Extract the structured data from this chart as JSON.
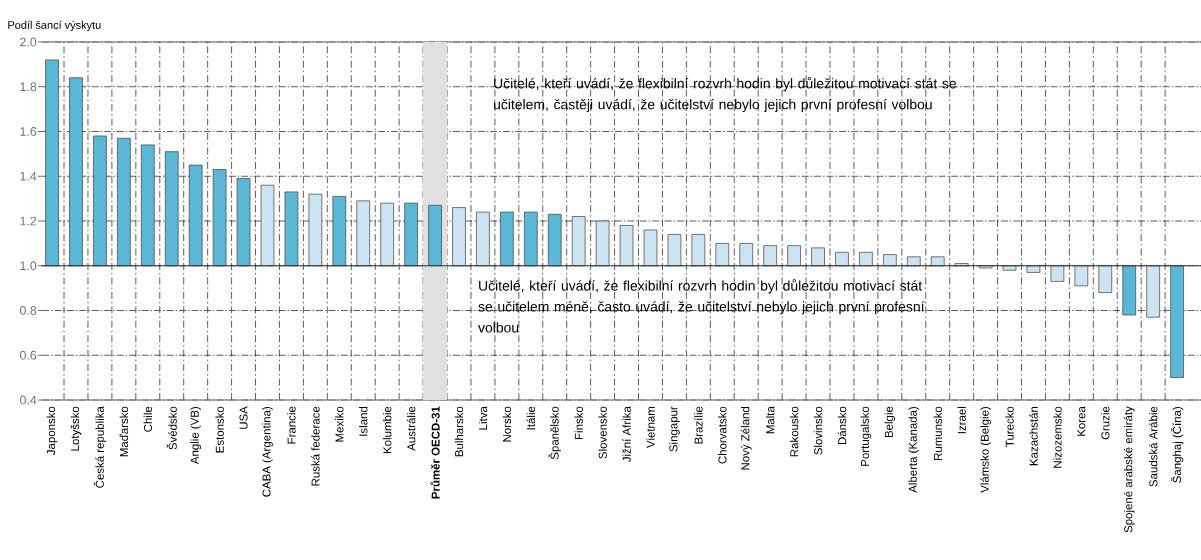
{
  "chart_data": {
    "type": "bar",
    "ylabel": "Podíl šancí výskytu",
    "categories": [
      "Japonsko",
      "Lotyšsko",
      "Česká republika",
      "Maďarsko",
      "Chile",
      "Švédsko",
      "Anglie (VB)",
      "Estonsko",
      "USA",
      "CABA (Argentina)",
      "Francie",
      "Ruská federace",
      "Mexiko",
      "Island",
      "Kolumbie",
      "Austrálie",
      "Průměr OECD-31",
      "Bulharsko",
      "Litva",
      "Norsko",
      "Itálie",
      "Španělsko",
      "Finsko",
      "Slovensko",
      "Jižní Afrika",
      "Vietnam",
      "Singapur",
      "Brazílie",
      "Chorvatsko",
      "Nový Zéland",
      "Malta",
      "Rakousko",
      "Slovinsko",
      "Dánsko",
      "Portugalsko",
      "Belgie",
      "Alberta (Kanada)",
      "Rumunsko",
      "Izrael",
      "Vlámsko (Belgie)",
      "Turecko",
      "Kazachstán",
      "Nizozemsko",
      "Korea",
      "Gruzie",
      "Spojené arabské emiráty",
      "Saudská Arábie",
      "Šanghaj (Čína)"
    ],
    "values": [
      0.92,
      0.84,
      0.58,
      0.57,
      0.54,
      0.51,
      0.45,
      0.43,
      0.39,
      0.36,
      0.33,
      0.32,
      0.31,
      0.29,
      0.28,
      0.28,
      0.27,
      0.26,
      0.24,
      0.24,
      0.24,
      0.23,
      0.22,
      0.2,
      0.18,
      0.16,
      0.14,
      0.14,
      0.1,
      0.1,
      0.09,
      0.09,
      0.08,
      0.06,
      0.06,
      0.05,
      0.04,
      0.04,
      0.01,
      -0.01,
      -0.02,
      -0.03,
      -0.07,
      -0.09,
      -0.12,
      -0.22,
      -0.23,
      -0.5
    ],
    "base": [
      1,
      1,
      1,
      1,
      1,
      1,
      1,
      1,
      1,
      1,
      1,
      1,
      1,
      1,
      1,
      1,
      1,
      1,
      1,
      1,
      1,
      1,
      1,
      1,
      1,
      1,
      1,
      1,
      1,
      1,
      1,
      1,
      1,
      1,
      1,
      1,
      1,
      1,
      1,
      1,
      1,
      1,
      1,
      1,
      1,
      1,
      1,
      1
    ],
    "colors": [
      "#5bb7d6",
      "#5bb7d6",
      "#5bb7d6",
      "#5bb7d6",
      "#5bb7d6",
      "#5bb7d6",
      "#5bb7d6",
      "#5bb7d6",
      "#5bb7d6",
      "#cce3f1",
      "#5bb7d6",
      "#cce3f1",
      "#5bb7d6",
      "#cce3f1",
      "#cce3f1",
      "#5bb7d6",
      "#5bb7d6",
      "#cce3f1",
      "#cce3f1",
      "#5bb7d6",
      "#5bb7d6",
      "#5bb7d6",
      "#cce3f1",
      "#cce3f1",
      "#cce3f1",
      "#cce3f1",
      "#cce3f1",
      "#cce3f1",
      "#cce3f1",
      "#cce3f1",
      "#cce3f1",
      "#cce3f1",
      "#cce3f1",
      "#cce3f1",
      "#cce3f1",
      "#cce3f1",
      "#cce3f1",
      "#cce3f1",
      "#cce3f1",
      "#cce3f1",
      "#cce3f1",
      "#cce3f1",
      "#cce3f1",
      "#cce3f1",
      "#cce3f1",
      "#5bb7d6",
      "#cce3f1",
      "#5bb7d6"
    ],
    "ylim": [
      0.4,
      2.0
    ],
    "yticks": [
      {
        "value": 0.4,
        "label": "0.4"
      },
      {
        "value": 0.6,
        "label": "0.6"
      },
      {
        "value": 0.8,
        "label": "0.8"
      },
      {
        "value": 1.0,
        "label": "1.0"
      },
      {
        "value": 1.2,
        "label": "1.2"
      },
      {
        "value": 1.4,
        "label": "1.4"
      },
      {
        "value": 1.6,
        "label": "1.6"
      },
      {
        "value": 1.8,
        "label": "1.8"
      },
      {
        "value": 2.0,
        "label": "2.0"
      }
    ],
    "grid": true,
    "ref_lines": [
      {
        "axis": "y",
        "value": 1.0,
        "color": "#333333"
      }
    ],
    "bands": [
      {
        "axis": "x",
        "from": "Průměr OECD-31",
        "to": "Průměr OECD-31",
        "color": "#e0e0e0"
      }
    ],
    "annotations": [
      "Učitelé, kteří uvádí, že flexibilní rozvrh hodin byl důležitou motivací stát se učitelem, častěji uvádí, že učitelství nebylo jejich první profesní volbou",
      "Učitelé, kteří uvádí, že flexibilní rozvrh hodin byl důležitou motivací stát se učitelem méně, často uvádí, že učitelství nebylo jejich první profesní volbou"
    ]
  }
}
